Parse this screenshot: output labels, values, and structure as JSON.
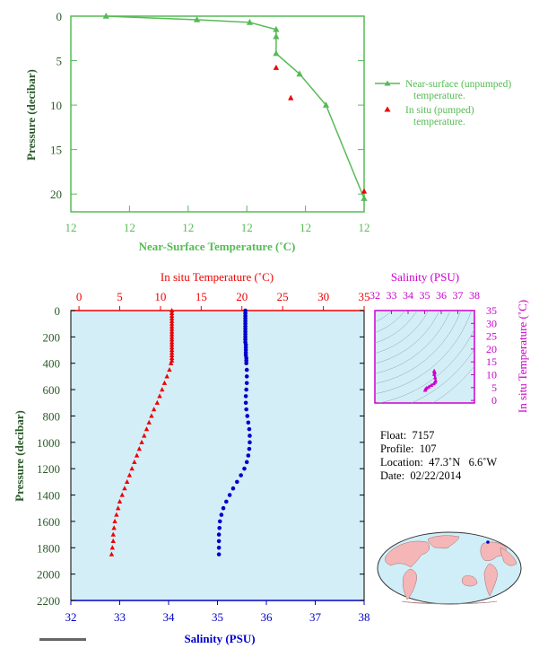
{
  "colors": {
    "green": "#55bb55",
    "red": "#ee0000",
    "blue": "#0000cc",
    "magenta": "#cc00cc",
    "axis_text_green": "#2a5a2a",
    "panel_bg": "#d4eef8",
    "land": "#f4b6b6",
    "ocean": "#cfeef8"
  },
  "chart_data": [
    {
      "type": "line",
      "name": "near-surface",
      "xlabel": "Near-Surface Temperature (˚C)",
      "ylabel": "Pressure (decibar)",
      "x_tick_labels": [
        "12",
        "12",
        "12",
        "12",
        "12",
        "12"
      ],
      "y_ticks": [
        0,
        5,
        10,
        15,
        20
      ],
      "ylim": [
        0,
        22
      ],
      "y_inverted": true,
      "x_axis_frac_note": "tick labels all read 12",
      "legend": {
        "placement": "right",
        "near_surface_label_1": "Near-surface (unpumped)",
        "near_surface_label_2": "temperature.",
        "in_situ_label_1": "In situ (pumped)",
        "in_situ_label_2": "temperature."
      },
      "series": [
        {
          "name": "Near-surface (unpumped) temperature.",
          "x_frac": [
            0.12,
            0.43,
            0.61,
            0.7,
            0.7,
            0.7,
            0.78,
            0.87,
            1.0
          ],
          "y": [
            0.0,
            0.4,
            0.7,
            1.5,
            2.3,
            4.2,
            6.5,
            10.0,
            20.5
          ]
        },
        {
          "name": "In situ (pumped) temperature.",
          "x_frac": [
            0.7,
            0.75,
            1.0
          ],
          "y": [
            5.8,
            9.2,
            19.7
          ]
        }
      ]
    },
    {
      "type": "scatter",
      "name": "profile",
      "ylabel": "Pressure (decibar)",
      "y_ticks": [
        0,
        200,
        400,
        600,
        800,
        1000,
        1200,
        1400,
        1600,
        1800,
        2000,
        2200
      ],
      "ylim": [
        0,
        2200
      ],
      "y_inverted": true,
      "top_axis": {
        "label": "In situ Temperature (˚C)",
        "ticks": [
          0,
          5,
          10,
          15,
          20,
          25,
          30,
          35
        ],
        "range": [
          -1,
          35
        ]
      },
      "bottom_axis": {
        "label": "Salinity (PSU)",
        "ticks": [
          32,
          33,
          34,
          35,
          36,
          37,
          38
        ],
        "range": [
          32,
          38
        ]
      },
      "temperature": {
        "p": [
          0,
          20,
          40,
          60,
          80,
          100,
          120,
          140,
          160,
          180,
          200,
          220,
          240,
          260,
          280,
          300,
          320,
          340,
          360,
          380,
          400,
          450,
          500,
          550,
          600,
          650,
          700,
          750,
          800,
          850,
          900,
          950,
          1000,
          1050,
          1100,
          1150,
          1200,
          1250,
          1300,
          1350,
          1400,
          1450,
          1500,
          1550,
          1600,
          1650,
          1700,
          1750,
          1800,
          1850
        ],
        "t": [
          11.4,
          11.4,
          11.4,
          11.4,
          11.4,
          11.4,
          11.4,
          11.4,
          11.4,
          11.4,
          11.4,
          11.4,
          11.4,
          11.4,
          11.4,
          11.4,
          11.4,
          11.4,
          11.4,
          11.4,
          11.3,
          11.1,
          10.8,
          10.5,
          10.2,
          9.9,
          9.6,
          9.2,
          8.9,
          8.6,
          8.3,
          8.0,
          7.7,
          7.4,
          7.1,
          6.8,
          6.5,
          6.2,
          5.9,
          5.6,
          5.3,
          5.0,
          4.8,
          4.6,
          4.4,
          4.3,
          4.2,
          4.2,
          4.1,
          4.0
        ]
      },
      "salinity": {
        "p": [
          0,
          20,
          40,
          60,
          80,
          100,
          120,
          140,
          160,
          180,
          200,
          220,
          240,
          260,
          280,
          300,
          320,
          340,
          360,
          380,
          400,
          450,
          500,
          550,
          600,
          650,
          700,
          750,
          800,
          850,
          900,
          950,
          1000,
          1050,
          1100,
          1150,
          1200,
          1250,
          1300,
          1350,
          1400,
          1450,
          1500,
          1550,
          1600,
          1650,
          1700,
          1750,
          1800,
          1850
        ],
        "s": [
          35.57,
          35.57,
          35.57,
          35.57,
          35.57,
          35.57,
          35.57,
          35.57,
          35.57,
          35.57,
          35.57,
          35.57,
          35.57,
          35.58,
          35.58,
          35.58,
          35.58,
          35.58,
          35.59,
          35.59,
          35.59,
          35.6,
          35.6,
          35.6,
          35.59,
          35.58,
          35.58,
          35.59,
          35.61,
          35.63,
          35.65,
          35.66,
          35.66,
          35.65,
          35.63,
          35.6,
          35.55,
          35.48,
          35.4,
          35.32,
          35.25,
          35.18,
          35.12,
          35.08,
          35.05,
          35.04,
          35.03,
          35.03,
          35.03,
          35.03
        ]
      }
    },
    {
      "type": "scatter",
      "name": "ts-diagram",
      "top_axis": {
        "label": "Salinity (PSU)",
        "ticks": [
          32,
          33,
          34,
          35,
          36,
          37,
          38
        ],
        "range": [
          32,
          38
        ]
      },
      "right_axis": {
        "label": "In situ Temperature (˚C)",
        "ticks": [
          0,
          5,
          10,
          15,
          20,
          25,
          30,
          35
        ],
        "range": [
          -1,
          35
        ]
      },
      "series": [
        {
          "s": [
            35.57,
            35.58,
            35.59,
            35.6,
            35.58,
            35.63,
            35.66,
            35.63,
            35.55,
            35.4,
            35.25,
            35.12,
            35.05,
            35.03
          ],
          "t": [
            11.4,
            11.4,
            11.3,
            10.8,
            10.2,
            8.9,
            7.7,
            7.1,
            6.5,
            5.9,
            5.3,
            4.8,
            4.4,
            4.0
          ]
        }
      ]
    }
  ],
  "info": {
    "float": "Float:  7157",
    "profile": "Profile:  107",
    "location": "Location:  47.3˚N   6.6˚W",
    "date": "Date:  02/22/2014"
  },
  "map_icon": "world-map-icon"
}
